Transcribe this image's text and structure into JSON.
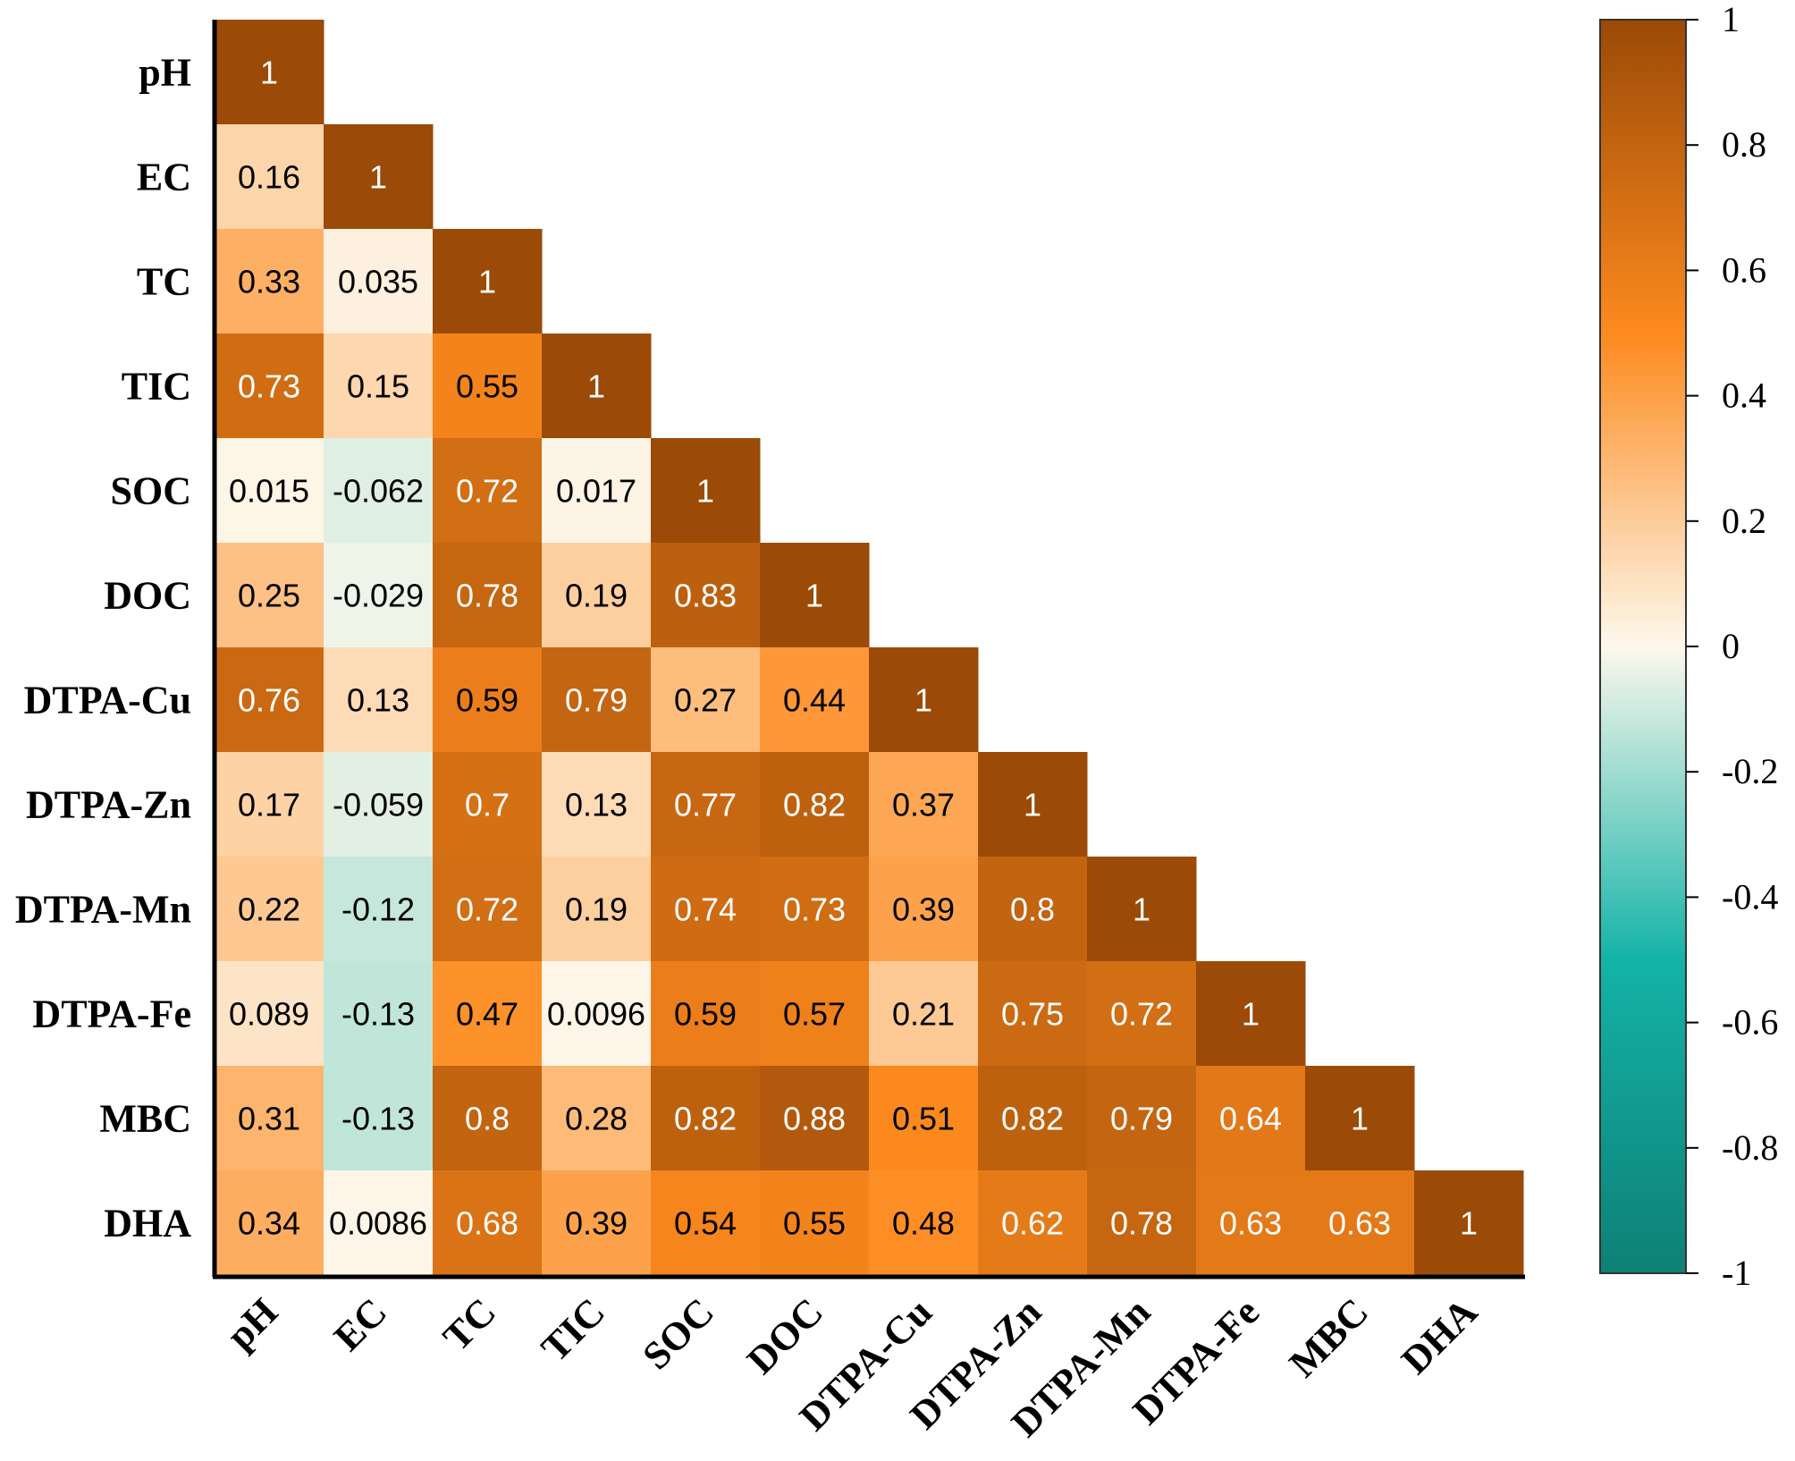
{
  "chart_data": {
    "type": "heatmap",
    "variables": [
      "pH",
      "EC",
      "TC",
      "TIC",
      "SOC",
      "DOC",
      "DTPA-Cu",
      "DTPA-Zn",
      "DTPA-Mn",
      "DTPA-Fe",
      "MBC",
      "DHA"
    ],
    "matrix": [
      [
        "1"
      ],
      [
        "0.16",
        "1"
      ],
      [
        "0.33",
        "0.035",
        "1"
      ],
      [
        "0.73",
        "0.15",
        "0.55",
        "1"
      ],
      [
        "0.015",
        "-0.062",
        "0.72",
        "0.017",
        "1"
      ],
      [
        "0.25",
        "-0.029",
        "0.78",
        "0.19",
        "0.83",
        "1"
      ],
      [
        "0.76",
        "0.13",
        "0.59",
        "0.79",
        "0.27",
        "0.44",
        "1"
      ],
      [
        "0.17",
        "-0.059",
        "0.7",
        "0.13",
        "0.77",
        "0.82",
        "0.37",
        "1"
      ],
      [
        "0.22",
        "-0.12",
        "0.72",
        "0.19",
        "0.74",
        "0.73",
        "0.39",
        "0.8",
        "1"
      ],
      [
        "0.089",
        "-0.13",
        "0.47",
        "0.0096",
        "0.59",
        "0.57",
        "0.21",
        "0.75",
        "0.72",
        "1"
      ],
      [
        "0.31",
        "-0.13",
        "0.8",
        "0.28",
        "0.82",
        "0.88",
        "0.51",
        "0.82",
        "0.79",
        "0.64",
        "1"
      ],
      [
        "0.34",
        "0.0086",
        "0.68",
        "0.39",
        "0.54",
        "0.55",
        "0.48",
        "0.62",
        "0.78",
        "0.63",
        "0.63",
        "1"
      ]
    ],
    "colorbar": {
      "range": [
        -1,
        1
      ],
      "ticks": [
        "1",
        "0.8",
        "0.6",
        "0.4",
        "0.2",
        "0",
        "-0.2",
        "-0.4",
        "-0.6",
        "-0.8",
        "-1"
      ]
    },
    "colors": {
      "neg_end": "#0e8075",
      "neg_mid": "#14b3a8",
      "zero": "#fdf8ec",
      "pos_mid": "#fd8a1e",
      "pos_end": "#9b4a07"
    }
  }
}
